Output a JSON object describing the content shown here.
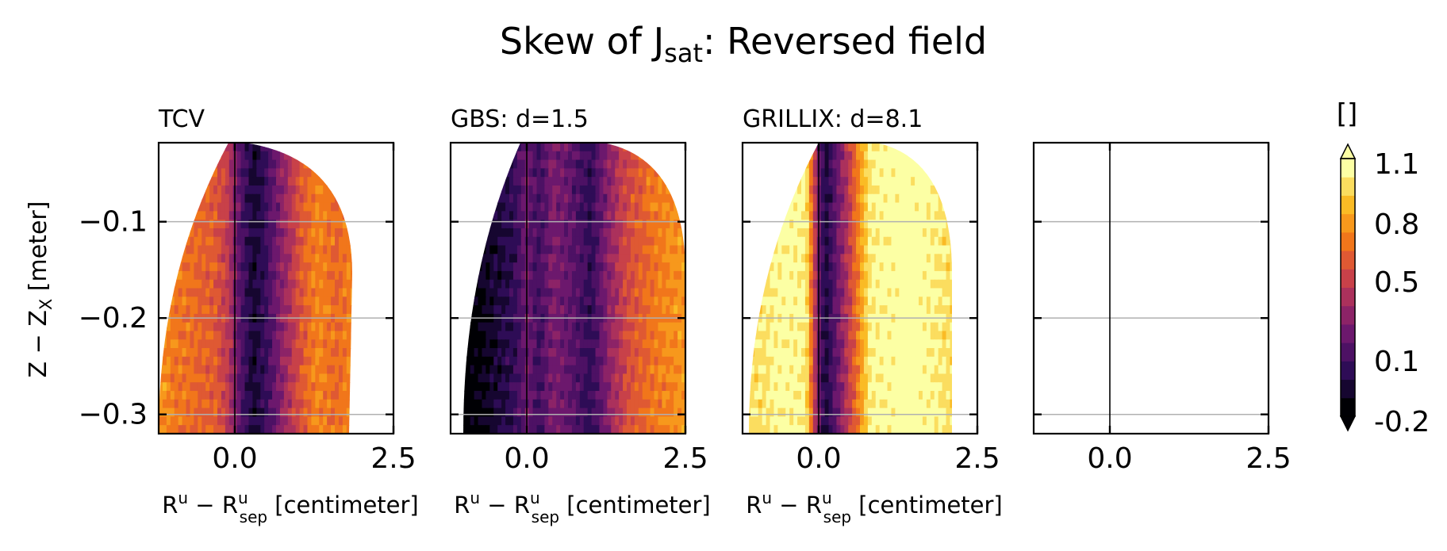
{
  "figure": {
    "title": {
      "main": "Skew of J",
      "sub": "sat",
      "rest": ": Reversed field"
    },
    "ylabel": {
      "a": "Z − Z",
      "sub": "X",
      "b": " [meter]"
    },
    "xlabel": {
      "a": "R",
      "sup1": "u",
      "b": " − R",
      "sup2": "u",
      "sub2": "sep",
      "c": " [centimeter]"
    },
    "colorbar": {
      "unit_label": "[]",
      "tick_labels": [
        "1.1",
        "0.8",
        "0.5",
        "0.1",
        "-0.2"
      ],
      "tick_values": [
        1.1,
        0.8,
        0.5,
        0.1,
        -0.2
      ],
      "vmin": -0.2,
      "vmax": 1.2,
      "cmap": "inferno",
      "extend": "both"
    }
  },
  "chart_data": [
    {
      "type": "heatmap",
      "title": "TCV",
      "xlim": [
        -1.2,
        2.5
      ],
      "ylim": [
        -0.32,
        -0.018
      ],
      "xticks": [
        {
          "value": 0.0,
          "label": "0.0"
        },
        {
          "value": 2.5,
          "label": "2.5"
        }
      ],
      "yticks": [
        {
          "value": -0.1,
          "label": "−0.1"
        },
        {
          "value": -0.2,
          "label": "−0.2"
        },
        {
          "value": -0.3,
          "label": "−0.3"
        }
      ],
      "grid": "y",
      "separatrix_x": 0.0,
      "domain": {
        "top_y": -0.018,
        "left_at_top": -0.1,
        "right_at_top": 0.15,
        "left_at_bottom": -1.2,
        "right_at_bottom": 1.8,
        "right_bulge": 1.85
      },
      "profile": {
        "x": [
          -1.2,
          -0.9,
          -0.6,
          -0.3,
          -0.1,
          0.1,
          0.3,
          0.45,
          0.7,
          1.0,
          1.3,
          1.6,
          1.85
        ],
        "skew": [
          0.85,
          0.75,
          0.7,
          0.65,
          0.5,
          0.15,
          -0.05,
          0.05,
          0.3,
          0.6,
          0.8,
          0.7,
          0.8
        ]
      }
    },
    {
      "type": "heatmap",
      "title": "GBS: d=1.5",
      "xlim": [
        -1.2,
        2.5
      ],
      "ylim": [
        -0.32,
        -0.018
      ],
      "xticks": [
        {
          "value": 0.0,
          "label": "0.0"
        },
        {
          "value": 2.5,
          "label": "2.5"
        }
      ],
      "yticks": [
        {
          "value": -0.1
        },
        {
          "value": -0.2
        },
        {
          "value": -0.3
        }
      ],
      "grid": "y",
      "separatrix_x": 0.0,
      "domain": {
        "top_y": -0.018,
        "left_at_top": -0.1,
        "right_at_top": 1.2,
        "left_at_bottom": -1.0,
        "right_at_bottom": 2.5,
        "right_bulge": 2.5
      },
      "profile": {
        "x": [
          -1.1,
          -0.8,
          -0.5,
          -0.2,
          0.0,
          0.2,
          0.4,
          0.7,
          1.0,
          1.3,
          1.6,
          2.0,
          2.5
        ],
        "skew": [
          -0.2,
          -0.15,
          -0.05,
          0.05,
          0.25,
          0.1,
          0.3,
          0.2,
          0.05,
          0.35,
          0.6,
          0.75,
          0.85
        ]
      }
    },
    {
      "type": "heatmap",
      "title": "GRILLIX: d=8.1",
      "xlim": [
        -1.2,
        2.5
      ],
      "ylim": [
        -0.32,
        -0.018
      ],
      "xticks": [
        {
          "value": 0.0,
          "label": "0.0"
        },
        {
          "value": 2.5,
          "label": "2.5"
        }
      ],
      "yticks": [
        {
          "value": -0.1
        },
        {
          "value": -0.2
        },
        {
          "value": -0.3
        }
      ],
      "grid": "y",
      "separatrix_x": 0.0,
      "domain": {
        "top_y": -0.018,
        "left_at_top": 0.0,
        "right_at_top": 0.9,
        "left_at_bottom": -1.1,
        "right_at_bottom": 2.1,
        "right_bulge": 2.1
      },
      "profile": {
        "x": [
          -1.1,
          -0.8,
          -0.5,
          -0.2,
          -0.05,
          0.1,
          0.3,
          0.5,
          0.8,
          1.1,
          1.4,
          1.7,
          2.1
        ],
        "skew": [
          1.05,
          1.1,
          1.15,
          1.12,
          0.45,
          -0.05,
          0.25,
          0.55,
          1.1,
          1.15,
          1.2,
          1.15,
          1.05
        ]
      }
    },
    {
      "type": "heatmap",
      "title": "",
      "xlim": [
        -1.2,
        2.5
      ],
      "ylim": [
        -0.32,
        -0.018
      ],
      "xticks": [
        {
          "value": 0.0,
          "label": "0.0"
        },
        {
          "value": 2.5,
          "label": "2.5"
        }
      ],
      "yticks": [
        {
          "value": -0.1
        },
        {
          "value": -0.2
        },
        {
          "value": -0.3
        }
      ],
      "grid": "y",
      "separatrix_x": 0.0,
      "empty": true
    }
  ]
}
